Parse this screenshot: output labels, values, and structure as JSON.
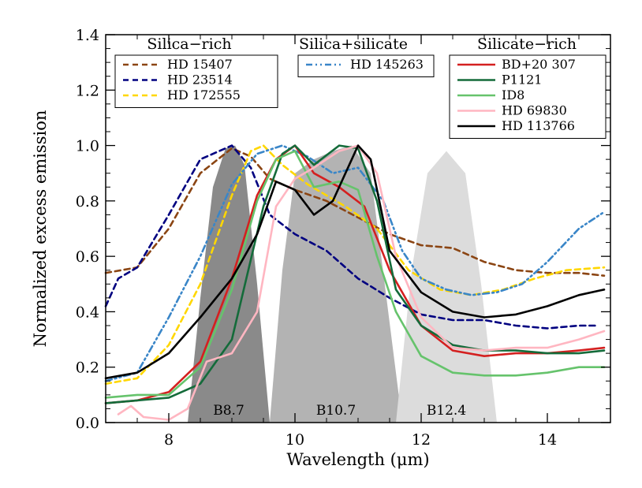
{
  "chart_data": {
    "type": "line",
    "xlabel": "Wavelength (μm)",
    "ylabel": "Normalized excess emission",
    "xlim": [
      7.0,
      15.0
    ],
    "ylim": [
      0.0,
      1.4
    ],
    "xticks": [
      {
        "value": 8,
        "label": "8"
      },
      {
        "value": 10,
        "label": "10"
      },
      {
        "value": 12,
        "label": "12"
      },
      {
        "value": 14,
        "label": "14"
      }
    ],
    "yticks": [
      {
        "value": 0.0,
        "label": "0.0"
      },
      {
        "value": 0.2,
        "label": "0.2"
      },
      {
        "value": 0.4,
        "label": "0.4"
      },
      {
        "value": 0.6,
        "label": "0.6"
      },
      {
        "value": 0.8,
        "label": "0.8"
      },
      {
        "value": 1.0,
        "label": "1.0"
      },
      {
        "value": 1.2,
        "label": "1.2"
      },
      {
        "value": 1.4,
        "label": "1.4"
      }
    ],
    "grid": false,
    "filters": [
      {
        "name": "B8.7",
        "color": "#8a8a8a",
        "x": [
          8.3,
          8.5,
          8.7,
          8.9,
          9.05,
          9.2,
          9.4,
          9.6
        ],
        "y": [
          0.0,
          0.45,
          0.85,
          0.99,
          1.0,
          0.93,
          0.5,
          0.0
        ]
      },
      {
        "name": "B10.7",
        "color": "#b3b3b3",
        "x": [
          9.6,
          9.8,
          10.0,
          10.3,
          10.6,
          10.9,
          11.2,
          11.45,
          11.7
        ],
        "y": [
          0.0,
          0.55,
          0.9,
          0.95,
          0.98,
          1.0,
          0.9,
          0.45,
          0.0
        ]
      },
      {
        "name": "B12.4",
        "color": "#dcdcdc",
        "x": [
          11.6,
          11.85,
          12.1,
          12.4,
          12.7,
          12.95,
          13.2
        ],
        "y": [
          0.0,
          0.55,
          0.9,
          0.98,
          0.9,
          0.5,
          0.0
        ]
      }
    ],
    "groups": [
      {
        "title": "Silica−rich",
        "legend": [
          "HD 15407",
          "HD 23514",
          "HD 172555"
        ]
      },
      {
        "title": "Silica+silicate",
        "legend": [
          "HD 145263"
        ]
      },
      {
        "title": "Silicate−rich",
        "legend": [
          "BD+20 307",
          "P1121",
          "ID8",
          "HD 69830",
          "HD 113766"
        ]
      }
    ],
    "series": [
      {
        "name": "HD 15407",
        "color": "#8b4513",
        "dash": "dashed",
        "x": [
          7.0,
          7.5,
          8.0,
          8.5,
          9.0,
          9.3,
          9.6,
          10.0,
          10.5,
          11.0,
          11.5,
          12.0,
          12.5,
          13.0,
          13.5,
          14.0,
          14.5,
          14.9
        ],
        "y": [
          0.54,
          0.56,
          0.7,
          0.9,
          0.99,
          0.96,
          0.88,
          0.84,
          0.8,
          0.74,
          0.68,
          0.64,
          0.63,
          0.58,
          0.55,
          0.54,
          0.54,
          0.53
        ]
      },
      {
        "name": "HD 23514",
        "color": "#000080",
        "dash": "dashed",
        "x": [
          7.0,
          7.2,
          7.5,
          8.0,
          8.5,
          9.0,
          9.3,
          9.6,
          10.0,
          10.5,
          11.0,
          11.5,
          12.0,
          12.5,
          13.0,
          13.5,
          14.0,
          14.5,
          14.8
        ],
        "y": [
          0.42,
          0.52,
          0.56,
          0.75,
          0.95,
          1.0,
          0.92,
          0.75,
          0.68,
          0.62,
          0.52,
          0.45,
          0.39,
          0.37,
          0.37,
          0.35,
          0.34,
          0.35,
          0.35
        ]
      },
      {
        "name": "HD 172555",
        "color": "#ffd700",
        "dash": "dashed",
        "x": [
          7.0,
          7.5,
          8.0,
          8.5,
          9.0,
          9.3,
          9.5,
          9.8,
          10.2,
          10.8,
          11.3,
          11.8,
          12.3,
          12.8,
          13.3,
          13.8,
          14.3,
          14.9
        ],
        "y": [
          0.14,
          0.16,
          0.28,
          0.5,
          0.82,
          0.98,
          1.0,
          0.93,
          0.86,
          0.78,
          0.7,
          0.55,
          0.48,
          0.46,
          0.48,
          0.52,
          0.55,
          0.56
        ]
      },
      {
        "name": "HD 145263",
        "color": "#3a86c8",
        "dash": "dashdotdot",
        "x": [
          7.0,
          7.5,
          8.0,
          8.5,
          9.0,
          9.4,
          9.8,
          10.2,
          10.6,
          11.0,
          11.4,
          11.7,
          12.0,
          12.4,
          12.8,
          13.2,
          13.6,
          14.0,
          14.5,
          14.9
        ],
        "y": [
          0.15,
          0.18,
          0.38,
          0.6,
          0.86,
          0.97,
          1.0,
          0.96,
          0.9,
          0.92,
          0.8,
          0.62,
          0.52,
          0.48,
          0.46,
          0.47,
          0.5,
          0.58,
          0.7,
          0.76
        ]
      },
      {
        "name": "BD+20 307",
        "color": "#d42020",
        "dash": "solid",
        "x": [
          7.0,
          7.5,
          8.0,
          8.5,
          9.0,
          9.4,
          9.7,
          10.0,
          10.3,
          10.7,
          11.1,
          11.5,
          12.0,
          12.5,
          13.0,
          13.5,
          14.0,
          14.5,
          14.9
        ],
        "y": [
          0.07,
          0.08,
          0.11,
          0.22,
          0.52,
          0.82,
          0.95,
          1.0,
          0.9,
          0.85,
          0.78,
          0.55,
          0.35,
          0.26,
          0.24,
          0.25,
          0.25,
          0.26,
          0.27
        ]
      },
      {
        "name": "P1121",
        "color": "#146b3a",
        "dash": "solid",
        "x": [
          7.0,
          7.5,
          8.0,
          8.5,
          9.0,
          9.5,
          9.8,
          10.0,
          10.3,
          10.7,
          11.0,
          11.3,
          11.6,
          12.0,
          12.5,
          13.0,
          13.5,
          14.0,
          14.5,
          14.9
        ],
        "y": [
          0.07,
          0.08,
          0.09,
          0.14,
          0.3,
          0.78,
          0.97,
          1.0,
          0.93,
          1.0,
          0.99,
          0.8,
          0.48,
          0.35,
          0.28,
          0.26,
          0.26,
          0.25,
          0.25,
          0.26
        ]
      },
      {
        "name": "ID8",
        "color": "#66c36c",
        "dash": "solid",
        "x": [
          7.0,
          7.5,
          8.0,
          8.5,
          9.0,
          9.4,
          9.7,
          10.0,
          10.3,
          10.7,
          11.0,
          11.3,
          11.6,
          12.0,
          12.5,
          13.0,
          13.5,
          14.0,
          14.5,
          14.9
        ],
        "y": [
          0.09,
          0.1,
          0.1,
          0.2,
          0.48,
          0.8,
          0.95,
          0.98,
          0.85,
          0.87,
          0.84,
          0.6,
          0.4,
          0.24,
          0.18,
          0.17,
          0.17,
          0.18,
          0.2,
          0.2
        ]
      },
      {
        "name": "HD 69830",
        "color": "#ffb6c1",
        "dash": "solid",
        "x": [
          7.2,
          7.4,
          7.6,
          8.0,
          8.3,
          8.6,
          9.0,
          9.4,
          9.7,
          10.0,
          10.3,
          10.7,
          11.0,
          11.3,
          11.6,
          12.0,
          12.5,
          13.0,
          13.5,
          14.0,
          14.5,
          14.9
        ],
        "y": [
          0.03,
          0.06,
          0.02,
          0.01,
          0.05,
          0.22,
          0.25,
          0.4,
          0.78,
          0.88,
          0.92,
          0.98,
          1.0,
          0.9,
          0.6,
          0.38,
          0.27,
          0.26,
          0.27,
          0.27,
          0.3,
          0.33
        ]
      },
      {
        "name": "HD 113766",
        "color": "#000000",
        "dash": "solid",
        "x": [
          7.0,
          7.5,
          8.0,
          8.5,
          9.0,
          9.4,
          9.7,
          10.0,
          10.3,
          10.6,
          11.0,
          11.2,
          11.5,
          12.0,
          12.5,
          13.0,
          13.5,
          14.0,
          14.5,
          14.9
        ],
        "y": [
          0.16,
          0.18,
          0.25,
          0.38,
          0.52,
          0.68,
          0.87,
          0.84,
          0.75,
          0.8,
          1.0,
          0.95,
          0.62,
          0.47,
          0.4,
          0.38,
          0.39,
          0.42,
          0.46,
          0.48
        ]
      }
    ]
  }
}
